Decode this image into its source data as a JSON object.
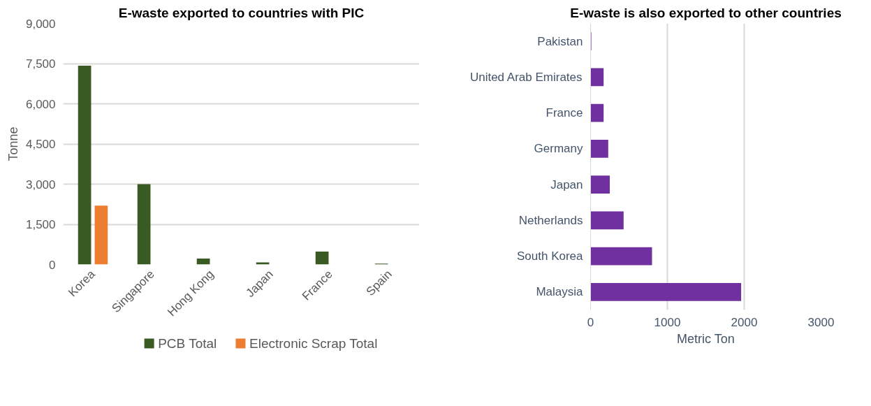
{
  "chart_data": [
    {
      "type": "bar",
      "title": "E-waste exported to countries with PIC",
      "ylabel": "Tonne",
      "categories": [
        "Korea",
        "Singapore",
        "Hong Kong",
        "Japan",
        "France",
        "Spain"
      ],
      "series": [
        {
          "name": "PCB Total",
          "color": "#3a5a24",
          "values": [
            7420,
            3000,
            220,
            80,
            480,
            35
          ]
        },
        {
          "name": "Electronic Scrap Total",
          "color": "#ed7d31",
          "values": [
            2200,
            null,
            null,
            null,
            null,
            null
          ]
        }
      ],
      "ylim": [
        0,
        9000
      ],
      "yticks": [
        0,
        {
          "value": 1500,
          "label": "1,500"
        },
        {
          "value": 3000,
          "label": "3,000"
        },
        {
          "value": 4500,
          "label": "4,500"
        },
        {
          "value": 6000,
          "label": "6,000"
        },
        {
          "value": 7500,
          "label": "7,500"
        },
        {
          "value": 9000,
          "label": "9,000"
        }
      ],
      "grid": "y",
      "legend": "bottom"
    },
    {
      "type": "bar",
      "orientation": "horizontal",
      "title": "E-waste is also exported to other countries",
      "xlabel": "Metric Ton",
      "categories": [
        "Pakistan",
        "United Arab Emirates",
        "France",
        "Germany",
        "Japan",
        "Netherlands",
        "South Korea",
        "Malaysia"
      ],
      "values": [
        10,
        170,
        170,
        230,
        250,
        430,
        800,
        1960
      ],
      "color": "#7030a0",
      "xlim": [
        0,
        3000
      ],
      "xticks": [
        0,
        1000,
        2000,
        3000
      ],
      "grid": "x"
    }
  ]
}
